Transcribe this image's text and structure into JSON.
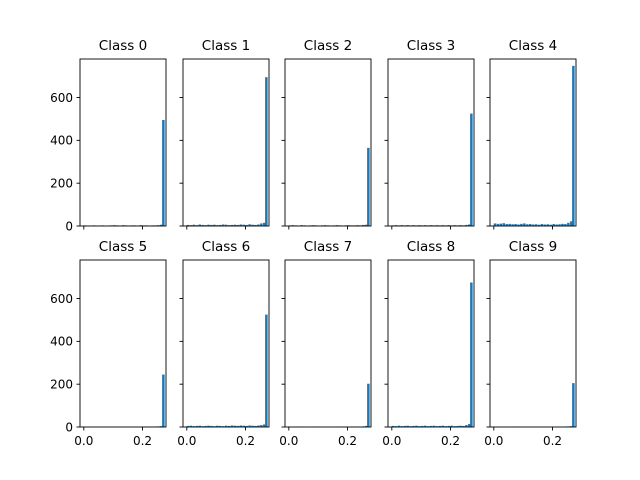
{
  "chart_data": [
    {
      "type": "bar",
      "title": "Class 0",
      "ylim": [
        0,
        780
      ],
      "xlim": [
        -0.013,
        0.28
      ],
      "xticks": [
        0.0,
        0.2
      ],
      "yticks": [
        0,
        200,
        400,
        600
      ],
      "bins": [
        [
          0.004,
          3
        ],
        [
          0.014,
          2
        ],
        [
          0.024,
          2
        ],
        [
          0.034,
          3
        ],
        [
          0.044,
          2
        ],
        [
          0.054,
          2
        ],
        [
          0.064,
          3
        ],
        [
          0.074,
          2
        ],
        [
          0.084,
          2
        ],
        [
          0.094,
          3
        ],
        [
          0.104,
          4
        ],
        [
          0.114,
          3
        ],
        [
          0.124,
          2
        ],
        [
          0.134,
          4
        ],
        [
          0.144,
          3
        ],
        [
          0.154,
          2
        ],
        [
          0.164,
          3
        ],
        [
          0.174,
          3
        ],
        [
          0.184,
          2
        ],
        [
          0.194,
          4
        ],
        [
          0.204,
          3
        ],
        [
          0.214,
          3
        ],
        [
          0.224,
          2
        ],
        [
          0.234,
          3
        ],
        [
          0.244,
          3
        ],
        [
          0.254,
          4
        ],
        [
          0.264,
          6
        ],
        [
          0.271,
          495
        ]
      ]
    },
    {
      "type": "bar",
      "title": "Class 1",
      "ylim": [
        0,
        780
      ],
      "xlim": [
        -0.013,
        0.28
      ],
      "xticks": [
        0.0,
        0.2
      ],
      "yticks": [
        0,
        200,
        400,
        600
      ],
      "bins": [
        [
          0.004,
          5
        ],
        [
          0.014,
          4
        ],
        [
          0.024,
          6
        ],
        [
          0.034,
          4
        ],
        [
          0.044,
          7
        ],
        [
          0.054,
          5
        ],
        [
          0.064,
          4
        ],
        [
          0.074,
          6
        ],
        [
          0.084,
          5
        ],
        [
          0.094,
          6
        ],
        [
          0.104,
          4
        ],
        [
          0.114,
          5
        ],
        [
          0.124,
          7
        ],
        [
          0.134,
          6
        ],
        [
          0.144,
          4
        ],
        [
          0.154,
          5
        ],
        [
          0.164,
          6
        ],
        [
          0.174,
          5
        ],
        [
          0.184,
          7
        ],
        [
          0.194,
          6
        ],
        [
          0.204,
          5
        ],
        [
          0.214,
          8
        ],
        [
          0.224,
          6
        ],
        [
          0.234,
          5
        ],
        [
          0.244,
          7
        ],
        [
          0.254,
          12
        ],
        [
          0.264,
          15
        ],
        [
          0.271,
          695
        ]
      ]
    },
    {
      "type": "bar",
      "title": "Class 2",
      "ylim": [
        0,
        780
      ],
      "xlim": [
        -0.013,
        0.28
      ],
      "xticks": [
        0.0,
        0.2
      ],
      "yticks": [
        0,
        200,
        400,
        600
      ],
      "bins": [
        [
          0.004,
          3
        ],
        [
          0.014,
          4
        ],
        [
          0.024,
          3
        ],
        [
          0.034,
          2
        ],
        [
          0.044,
          4
        ],
        [
          0.054,
          3
        ],
        [
          0.064,
          2
        ],
        [
          0.074,
          3
        ],
        [
          0.084,
          4
        ],
        [
          0.094,
          3
        ],
        [
          0.104,
          2
        ],
        [
          0.114,
          3
        ],
        [
          0.124,
          4
        ],
        [
          0.134,
          3
        ],
        [
          0.144,
          2
        ],
        [
          0.154,
          3
        ],
        [
          0.164,
          4
        ],
        [
          0.174,
          3
        ],
        [
          0.184,
          2
        ],
        [
          0.194,
          3
        ],
        [
          0.204,
          4
        ],
        [
          0.214,
          3
        ],
        [
          0.224,
          3
        ],
        [
          0.234,
          4
        ],
        [
          0.244,
          3
        ],
        [
          0.254,
          5
        ],
        [
          0.264,
          6
        ],
        [
          0.271,
          365
        ]
      ]
    },
    {
      "type": "bar",
      "title": "Class 3",
      "ylim": [
        0,
        780
      ],
      "xlim": [
        -0.013,
        0.28
      ],
      "xticks": [
        0.0,
        0.2
      ],
      "yticks": [
        0,
        200,
        400,
        600
      ],
      "bins": [
        [
          0.004,
          3
        ],
        [
          0.014,
          4
        ],
        [
          0.024,
          3
        ],
        [
          0.034,
          4
        ],
        [
          0.044,
          3
        ],
        [
          0.054,
          4
        ],
        [
          0.064,
          3
        ],
        [
          0.074,
          4
        ],
        [
          0.084,
          3
        ],
        [
          0.094,
          4
        ],
        [
          0.104,
          3
        ],
        [
          0.114,
          4
        ],
        [
          0.124,
          3
        ],
        [
          0.134,
          4
        ],
        [
          0.144,
          3
        ],
        [
          0.154,
          4
        ],
        [
          0.164,
          3
        ],
        [
          0.174,
          4
        ],
        [
          0.184,
          3
        ],
        [
          0.194,
          4
        ],
        [
          0.204,
          3
        ],
        [
          0.214,
          4
        ],
        [
          0.224,
          3
        ],
        [
          0.234,
          4
        ],
        [
          0.244,
          3
        ],
        [
          0.254,
          5
        ],
        [
          0.264,
          7
        ],
        [
          0.271,
          525
        ]
      ]
    },
    {
      "type": "bar",
      "title": "Class 4",
      "ylim": [
        0,
        780
      ],
      "xlim": [
        -0.013,
        0.28
      ],
      "xticks": [
        0.0,
        0.2
      ],
      "yticks": [
        0,
        200,
        400,
        600
      ],
      "bins": [
        [
          0.004,
          12
        ],
        [
          0.014,
          10
        ],
        [
          0.024,
          11
        ],
        [
          0.034,
          13
        ],
        [
          0.044,
          9
        ],
        [
          0.054,
          10
        ],
        [
          0.064,
          8
        ],
        [
          0.074,
          9
        ],
        [
          0.084,
          7
        ],
        [
          0.094,
          10
        ],
        [
          0.104,
          12
        ],
        [
          0.114,
          8
        ],
        [
          0.124,
          9
        ],
        [
          0.134,
          7
        ],
        [
          0.144,
          8
        ],
        [
          0.154,
          6
        ],
        [
          0.164,
          9
        ],
        [
          0.174,
          7
        ],
        [
          0.184,
          8
        ],
        [
          0.194,
          6
        ],
        [
          0.204,
          9
        ],
        [
          0.214,
          7
        ],
        [
          0.224,
          8
        ],
        [
          0.234,
          10
        ],
        [
          0.244,
          9
        ],
        [
          0.254,
          15
        ],
        [
          0.264,
          22
        ],
        [
          0.271,
          748
        ]
      ]
    },
    {
      "type": "bar",
      "title": "Class 5",
      "ylim": [
        0,
        780
      ],
      "xlim": [
        -0.013,
        0.28
      ],
      "xticks": [
        0.0,
        0.2
      ],
      "yticks": [
        0,
        200,
        400,
        600
      ],
      "bins": [
        [
          0.004,
          1
        ],
        [
          0.014,
          1
        ],
        [
          0.024,
          1
        ],
        [
          0.034,
          1
        ],
        [
          0.044,
          1
        ],
        [
          0.054,
          1
        ],
        [
          0.064,
          1
        ],
        [
          0.074,
          1
        ],
        [
          0.084,
          1
        ],
        [
          0.094,
          1
        ],
        [
          0.104,
          1
        ],
        [
          0.114,
          1
        ],
        [
          0.124,
          1
        ],
        [
          0.134,
          1
        ],
        [
          0.144,
          1
        ],
        [
          0.154,
          1
        ],
        [
          0.164,
          1
        ],
        [
          0.174,
          1
        ],
        [
          0.184,
          1
        ],
        [
          0.194,
          2
        ],
        [
          0.204,
          1
        ],
        [
          0.214,
          2
        ],
        [
          0.224,
          1
        ],
        [
          0.234,
          2
        ],
        [
          0.244,
          2
        ],
        [
          0.254,
          3
        ],
        [
          0.264,
          4
        ],
        [
          0.271,
          245
        ]
      ]
    },
    {
      "type": "bar",
      "title": "Class 6",
      "ylim": [
        0,
        780
      ],
      "xlim": [
        -0.013,
        0.28
      ],
      "xticks": [
        0.0,
        0.2
      ],
      "yticks": [
        0,
        200,
        400,
        600
      ],
      "bins": [
        [
          0.004,
          5
        ],
        [
          0.014,
          6
        ],
        [
          0.024,
          4
        ],
        [
          0.034,
          5
        ],
        [
          0.044,
          6
        ],
        [
          0.054,
          4
        ],
        [
          0.064,
          5
        ],
        [
          0.074,
          6
        ],
        [
          0.084,
          5
        ],
        [
          0.094,
          4
        ],
        [
          0.104,
          6
        ],
        [
          0.114,
          5
        ],
        [
          0.124,
          4
        ],
        [
          0.134,
          6
        ],
        [
          0.144,
          5
        ],
        [
          0.154,
          7
        ],
        [
          0.164,
          6
        ],
        [
          0.174,
          5
        ],
        [
          0.184,
          7
        ],
        [
          0.194,
          6
        ],
        [
          0.204,
          5
        ],
        [
          0.214,
          7
        ],
        [
          0.224,
          6
        ],
        [
          0.234,
          5
        ],
        [
          0.244,
          7
        ],
        [
          0.254,
          9
        ],
        [
          0.264,
          12
        ],
        [
          0.271,
          525
        ]
      ]
    },
    {
      "type": "bar",
      "title": "Class 7",
      "ylim": [
        0,
        780
      ],
      "xlim": [
        -0.013,
        0.28
      ],
      "xticks": [
        0.0,
        0.2
      ],
      "yticks": [
        0,
        200,
        400,
        600
      ],
      "bins": [
        [
          0.004,
          2
        ],
        [
          0.014,
          1
        ],
        [
          0.024,
          1
        ],
        [
          0.034,
          2
        ],
        [
          0.044,
          1
        ],
        [
          0.054,
          2
        ],
        [
          0.064,
          1
        ],
        [
          0.074,
          1
        ],
        [
          0.084,
          2
        ],
        [
          0.094,
          1
        ],
        [
          0.104,
          2
        ],
        [
          0.114,
          1
        ],
        [
          0.124,
          1
        ],
        [
          0.134,
          2
        ],
        [
          0.144,
          1
        ],
        [
          0.154,
          1
        ],
        [
          0.164,
          2
        ],
        [
          0.174,
          1
        ],
        [
          0.184,
          1
        ],
        [
          0.194,
          2
        ],
        [
          0.204,
          1
        ],
        [
          0.214,
          2
        ],
        [
          0.224,
          1
        ],
        [
          0.234,
          2
        ],
        [
          0.244,
          1
        ],
        [
          0.254,
          3
        ],
        [
          0.264,
          5
        ],
        [
          0.271,
          202
        ]
      ]
    },
    {
      "type": "bar",
      "title": "Class 8",
      "ylim": [
        0,
        780
      ],
      "xlim": [
        -0.013,
        0.28
      ],
      "xticks": [
        0.0,
        0.2
      ],
      "yticks": [
        0,
        200,
        400,
        600
      ],
      "bins": [
        [
          0.004,
          5
        ],
        [
          0.014,
          4
        ],
        [
          0.024,
          6
        ],
        [
          0.034,
          4
        ],
        [
          0.044,
          5
        ],
        [
          0.054,
          6
        ],
        [
          0.064,
          4
        ],
        [
          0.074,
          5
        ],
        [
          0.084,
          6
        ],
        [
          0.094,
          4
        ],
        [
          0.104,
          5
        ],
        [
          0.114,
          6
        ],
        [
          0.124,
          4
        ],
        [
          0.134,
          5
        ],
        [
          0.144,
          6
        ],
        [
          0.154,
          4
        ],
        [
          0.164,
          5
        ],
        [
          0.174,
          6
        ],
        [
          0.184,
          4
        ],
        [
          0.194,
          5
        ],
        [
          0.204,
          6
        ],
        [
          0.214,
          4
        ],
        [
          0.224,
          5
        ],
        [
          0.234,
          6
        ],
        [
          0.244,
          5
        ],
        [
          0.254,
          9
        ],
        [
          0.264,
          14
        ],
        [
          0.271,
          675
        ]
      ]
    },
    {
      "type": "bar",
      "title": "Class 9",
      "ylim": [
        0,
        780
      ],
      "xlim": [
        -0.013,
        0.28
      ],
      "xticks": [
        0.0,
        0.2
      ],
      "yticks": [
        0,
        200,
        400,
        600
      ],
      "bins": [
        [
          0.004,
          1
        ],
        [
          0.014,
          1
        ],
        [
          0.024,
          1
        ],
        [
          0.034,
          1
        ],
        [
          0.044,
          1
        ],
        [
          0.054,
          1
        ],
        [
          0.064,
          1
        ],
        [
          0.074,
          2
        ],
        [
          0.084,
          1
        ],
        [
          0.094,
          1
        ],
        [
          0.104,
          1
        ],
        [
          0.114,
          1
        ],
        [
          0.124,
          1
        ],
        [
          0.134,
          1
        ],
        [
          0.144,
          1
        ],
        [
          0.154,
          1
        ],
        [
          0.164,
          1
        ],
        [
          0.174,
          1
        ],
        [
          0.184,
          1
        ],
        [
          0.194,
          1
        ],
        [
          0.204,
          1
        ],
        [
          0.214,
          1
        ],
        [
          0.224,
          1
        ],
        [
          0.234,
          1
        ],
        [
          0.244,
          2
        ],
        [
          0.254,
          3
        ],
        [
          0.264,
          4
        ],
        [
          0.271,
          205
        ]
      ]
    }
  ],
  "bar_color": "#1f77b4"
}
